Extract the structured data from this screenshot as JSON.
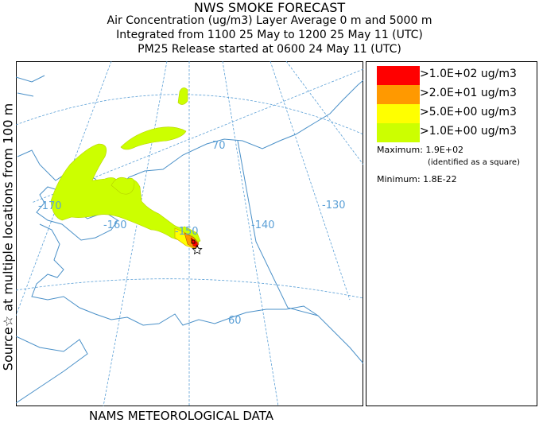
{
  "header": {
    "title": "NWS SMOKE FORECAST",
    "line1": "Air Concentration (ug/m3) Layer Average    0 m and  5000 m",
    "line2": "Integrated from 1100 25 May to 1200 25 May 11 (UTC)",
    "line3": "PM25 Release started at 0600 24 May 11 (UTC)"
  },
  "side_label": "Source☆ at multiple locations  from  100 m",
  "footer": "NAMS METEOROLOGICAL DATA",
  "map": {
    "longitude_labels": [
      "-170",
      "-160",
      "-150",
      "-140",
      "-130"
    ],
    "latitude_labels": [
      "70",
      "60"
    ],
    "colors": {
      "graticule": "#5a9fd6",
      "coast": "#4a90c8"
    }
  },
  "legend": {
    "items": [
      {
        "label": ">1.0E+02 ug/m3",
        "color": "#ff0000"
      },
      {
        "label": ">2.0E+01 ug/m3",
        "color": "#ff9900"
      },
      {
        "label": ">5.0E+00 ug/m3",
        "color": "#ffff00"
      },
      {
        "label": ">1.0E+00 ug/m3",
        "color": "#ccff00"
      }
    ],
    "maximum": "Maximum: 1.9E+02",
    "maximum_note": "(identified as a square)",
    "minimum": "Minimum: 1.8E-22"
  }
}
